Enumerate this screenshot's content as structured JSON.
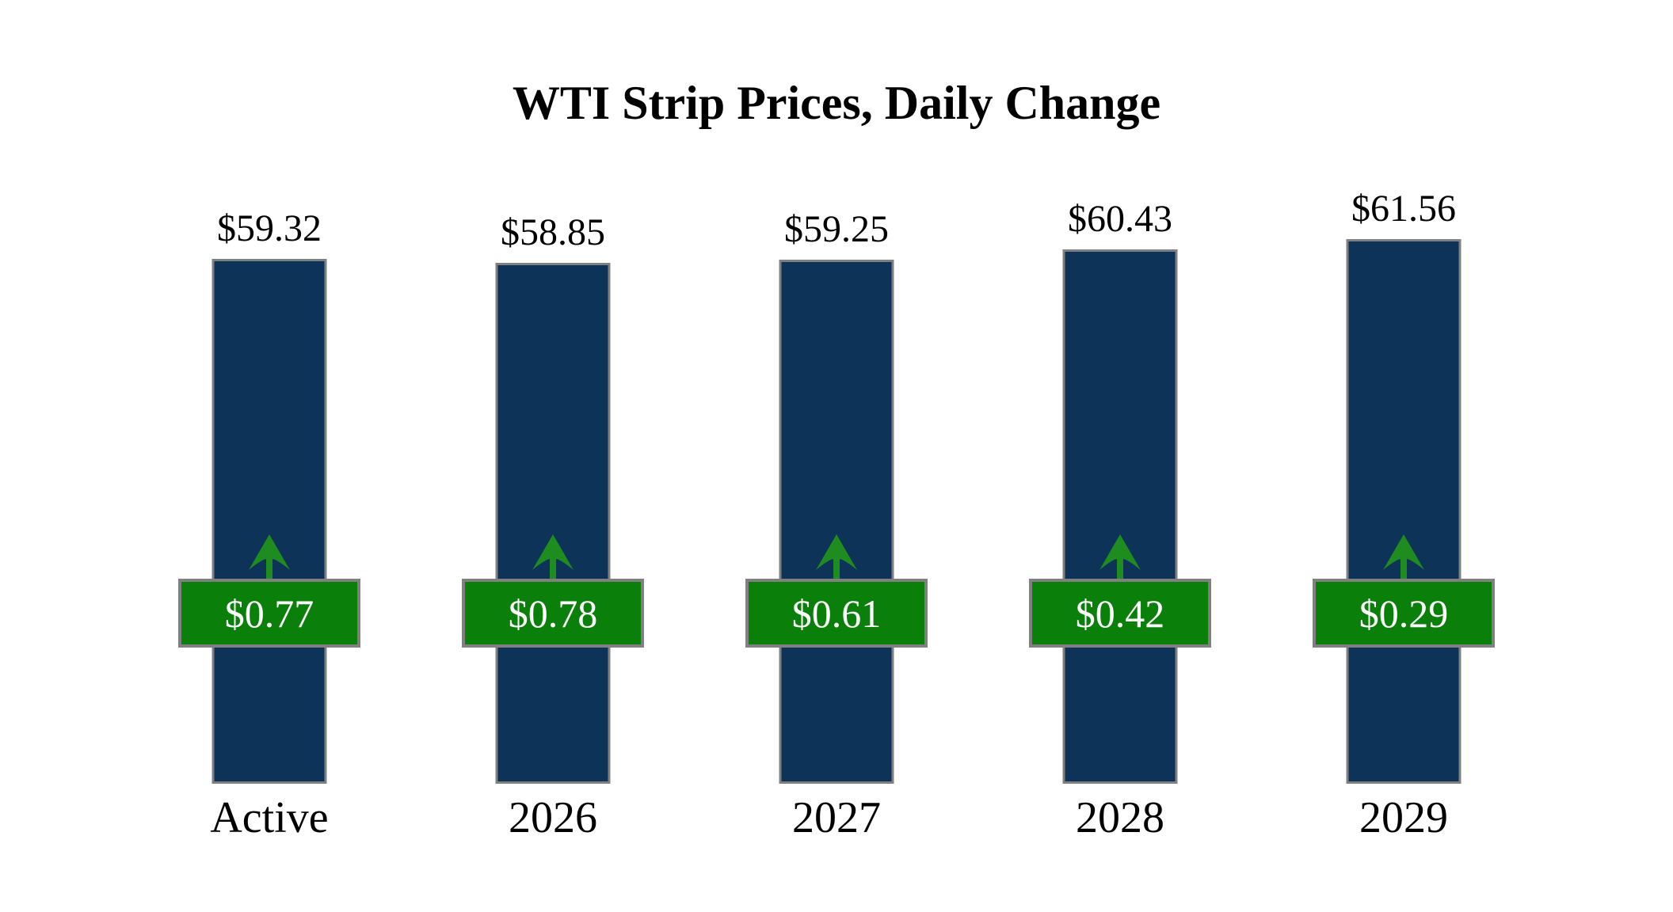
{
  "title": "WTI Strip Prices, Daily Change",
  "colors": {
    "bar": "#0d3359",
    "bar_border": "#808080",
    "badge": "#0a7f0a",
    "badge_border": "#808080",
    "arrow": "#1f8c1f",
    "text": "#000000",
    "badge_text": "#ffffff",
    "background": "#ffffff"
  },
  "chart_data": {
    "type": "bar",
    "title": "WTI Strip Prices, Daily Change",
    "categories": [
      "Active",
      "2026",
      "2027",
      "2028",
      "2029"
    ],
    "values": [
      59.32,
      58.85,
      59.25,
      60.43,
      61.56
    ],
    "price_labels": [
      "$59.32",
      "$58.85",
      "$59.25",
      "$60.43",
      "$61.56"
    ],
    "changes": [
      0.77,
      0.78,
      0.61,
      0.42,
      0.29
    ],
    "change_labels": [
      "$0.77",
      "$0.78",
      "$0.61",
      "$0.42",
      "$0.29"
    ],
    "change_direction": "up",
    "xlabel": "",
    "ylabel": "",
    "ylim": [
      0,
      61.56
    ],
    "grid": false,
    "axes_hidden": true,
    "legend": "none"
  }
}
